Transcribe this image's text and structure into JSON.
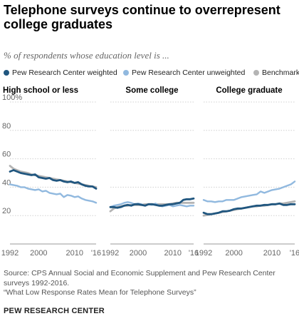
{
  "title": "Telephone surveys continue to overrepresent college graduates",
  "subtitle": "% of respondents whose education level is ...",
  "source_line1": "Source: CPS Annual Social and Economic Supplement and Pew Research Center surveys 1992-2016.",
  "source_line2": "“What Low Response Rates Mean for Telephone Surveys”",
  "credit": "PEW RESEARCH CENTER",
  "colors": {
    "weighted": "#20567f",
    "unweighted": "#91b9df",
    "benchmark": "#b4b4b4",
    "grid": "#d0d0d0",
    "tick_text": "#666666"
  },
  "chart_data": {
    "type": "line",
    "ylim": [
      0,
      100
    ],
    "yticks": [
      "20",
      "40",
      "60",
      "80",
      "100%"
    ],
    "xticks": [
      "1992",
      "2000",
      "2010",
      "'16"
    ],
    "xlim": [
      1992,
      2016
    ],
    "grid": "horizontal",
    "legend": "top",
    "series_labels": {
      "weighted": "Pew Research Center weighted",
      "unweighted": "Pew Research Center unweighted",
      "benchmark": "Benchmark"
    },
    "panels": [
      {
        "name": "High school or less",
        "series": {
          "benchmark": [
            [
              1992,
              55
            ],
            [
              1993,
              53
            ],
            [
              1994,
              52
            ],
            [
              1995,
              51
            ],
            [
              1996,
              50.5
            ],
            [
              1997,
              50
            ],
            [
              1998,
              49
            ],
            [
              1999,
              48.5
            ],
            [
              2000,
              48
            ],
            [
              2001,
              47.5
            ],
            [
              2002,
              47
            ],
            [
              2003,
              46.5
            ],
            [
              2004,
              46
            ],
            [
              2005,
              45.5
            ],
            [
              2006,
              45
            ],
            [
              2007,
              44.5
            ],
            [
              2008,
              44
            ],
            [
              2009,
              43.5
            ],
            [
              2010,
              43
            ],
            [
              2011,
              42.5
            ],
            [
              2012,
              42
            ],
            [
              2013,
              41.5
            ],
            [
              2014,
              41
            ],
            [
              2015,
              40.5
            ],
            [
              2016,
              40
            ]
          ],
          "weighted": [
            [
              1992,
              51
            ],
            [
              1993,
              52
            ],
            [
              1994,
              51
            ],
            [
              1995,
              50
            ],
            [
              1996,
              49.5
            ],
            [
              1997,
              49
            ],
            [
              1998,
              48.5
            ],
            [
              1999,
              49
            ],
            [
              2000,
              47
            ],
            [
              2001,
              46.5
            ],
            [
              2002,
              46
            ],
            [
              2003,
              46.5
            ],
            [
              2004,
              45
            ],
            [
              2005,
              44.5
            ],
            [
              2006,
              45
            ],
            [
              2007,
              44
            ],
            [
              2008,
              43.5
            ],
            [
              2009,
              44
            ],
            [
              2010,
              43
            ],
            [
              2011,
              43.5
            ],
            [
              2012,
              42
            ],
            [
              2013,
              41
            ],
            [
              2014,
              40.5
            ],
            [
              2015,
              40.5
            ],
            [
              2016,
              39
            ]
          ],
          "unweighted": [
            [
              1992,
              42
            ],
            [
              1993,
              41.5
            ],
            [
              1994,
              41
            ],
            [
              1995,
              40
            ],
            [
              1996,
              40
            ],
            [
              1997,
              39
            ],
            [
              1998,
              38.5
            ],
            [
              1999,
              38
            ],
            [
              2000,
              38.5
            ],
            [
              2001,
              37
            ],
            [
              2002,
              37.5
            ],
            [
              2003,
              36
            ],
            [
              2004,
              35.5
            ],
            [
              2005,
              35
            ],
            [
              2006,
              35.5
            ],
            [
              2007,
              33
            ],
            [
              2008,
              34.5
            ],
            [
              2009,
              34
            ],
            [
              2010,
              33
            ],
            [
              2011,
              33.5
            ],
            [
              2012,
              32
            ],
            [
              2013,
              31
            ],
            [
              2014,
              30.5
            ],
            [
              2015,
              30
            ],
            [
              2016,
              29
            ]
          ]
        }
      },
      {
        "name": "Some college",
        "series": {
          "benchmark": [
            [
              1992,
              23
            ],
            [
              1993,
              25
            ],
            [
              1994,
              26
            ],
            [
              1995,
              26.5
            ],
            [
              1996,
              27
            ],
            [
              1997,
              27
            ],
            [
              1998,
              27.5
            ],
            [
              1999,
              27.5
            ],
            [
              2000,
              27.5
            ],
            [
              2001,
              27.5
            ],
            [
              2002,
              28
            ],
            [
              2003,
              28
            ],
            [
              2004,
              28
            ],
            [
              2005,
              28
            ],
            [
              2006,
              28
            ],
            [
              2007,
              28
            ],
            [
              2008,
              28
            ],
            [
              2009,
              28
            ],
            [
              2010,
              28.5
            ],
            [
              2011,
              29
            ],
            [
              2012,
              29
            ],
            [
              2013,
              29
            ],
            [
              2014,
              29
            ],
            [
              2015,
              29
            ],
            [
              2016,
              29
            ]
          ],
          "weighted": [
            [
              1992,
              26
            ],
            [
              1993,
              26
            ],
            [
              1994,
              25.5
            ],
            [
              1995,
              26
            ],
            [
              1996,
              27
            ],
            [
              1997,
              27.5
            ],
            [
              1998,
              27
            ],
            [
              1999,
              28
            ],
            [
              2000,
              28
            ],
            [
              2001,
              27.5
            ],
            [
              2002,
              27
            ],
            [
              2003,
              28
            ],
            [
              2004,
              28
            ],
            [
              2005,
              27.5
            ],
            [
              2006,
              27
            ],
            [
              2007,
              27
            ],
            [
              2008,
              27.5
            ],
            [
              2009,
              28
            ],
            [
              2010,
              28
            ],
            [
              2011,
              28.5
            ],
            [
              2012,
              29
            ],
            [
              2013,
              31
            ],
            [
              2014,
              31.5
            ],
            [
              2015,
              31.5
            ],
            [
              2016,
              32
            ]
          ],
          "unweighted": [
            [
              1992,
              26
            ],
            [
              1993,
              27
            ],
            [
              1994,
              27.5
            ],
            [
              1995,
              28
            ],
            [
              1996,
              29
            ],
            [
              1997,
              29.5
            ],
            [
              1998,
              29
            ],
            [
              1999,
              28
            ],
            [
              2000,
              28.5
            ],
            [
              2001,
              28
            ],
            [
              2002,
              27
            ],
            [
              2003,
              28
            ],
            [
              2004,
              27.5
            ],
            [
              2005,
              28.5
            ],
            [
              2006,
              27
            ],
            [
              2007,
              26.5
            ],
            [
              2008,
              27
            ],
            [
              2009,
              27.5
            ],
            [
              2010,
              26.5
            ],
            [
              2011,
              27
            ],
            [
              2012,
              27.5
            ],
            [
              2013,
              27
            ],
            [
              2014,
              26.5
            ],
            [
              2015,
              27
            ],
            [
              2016,
              27
            ]
          ]
        }
      },
      {
        "name": "College graduate",
        "series": {
          "benchmark": [
            [
              1992,
              20
            ],
            [
              1993,
              20.5
            ],
            [
              1994,
              21
            ],
            [
              1995,
              21.5
            ],
            [
              1996,
              22
            ],
            [
              1997,
              22.5
            ],
            [
              1998,
              23
            ],
            [
              1999,
              23.5
            ],
            [
              2000,
              24
            ],
            [
              2001,
              24.5
            ],
            [
              2002,
              25
            ],
            [
              2003,
              25.5
            ],
            [
              2004,
              26
            ],
            [
              2005,
              26.5
            ],
            [
              2006,
              26.5
            ],
            [
              2007,
              27
            ],
            [
              2008,
              27
            ],
            [
              2009,
              27.5
            ],
            [
              2010,
              28
            ],
            [
              2011,
              28
            ],
            [
              2012,
              28.5
            ],
            [
              2013,
              28.5
            ],
            [
              2014,
              29
            ],
            [
              2015,
              29.5
            ],
            [
              2016,
              30
            ]
          ],
          "weighted": [
            [
              1992,
              22
            ],
            [
              1993,
              21
            ],
            [
              1994,
              21
            ],
            [
              1995,
              21.5
            ],
            [
              1996,
              22
            ],
            [
              1997,
              23
            ],
            [
              1998,
              23
            ],
            [
              1999,
              23.5
            ],
            [
              2000,
              24.5
            ],
            [
              2001,
              25
            ],
            [
              2002,
              25
            ],
            [
              2003,
              25.5
            ],
            [
              2004,
              26
            ],
            [
              2005,
              26.5
            ],
            [
              2006,
              27
            ],
            [
              2007,
              27
            ],
            [
              2008,
              27.5
            ],
            [
              2009,
              27.5
            ],
            [
              2010,
              28
            ],
            [
              2011,
              28
            ],
            [
              2012,
              28.5
            ],
            [
              2013,
              27.5
            ],
            [
              2014,
              27.5
            ],
            [
              2015,
              28
            ],
            [
              2016,
              28
            ]
          ],
          "unweighted": [
            [
              1992,
              31
            ],
            [
              1993,
              30
            ],
            [
              1994,
              30
            ],
            [
              1995,
              29.5
            ],
            [
              1996,
              30
            ],
            [
              1997,
              30
            ],
            [
              1998,
              31
            ],
            [
              1999,
              31
            ],
            [
              2000,
              31
            ],
            [
              2001,
              32
            ],
            [
              2002,
              33
            ],
            [
              2003,
              33.5
            ],
            [
              2004,
              34
            ],
            [
              2005,
              34.5
            ],
            [
              2006,
              35
            ],
            [
              2007,
              37
            ],
            [
              2008,
              36
            ],
            [
              2009,
              37
            ],
            [
              2010,
              38
            ],
            [
              2011,
              38.5
            ],
            [
              2012,
              39
            ],
            [
              2013,
              40
            ],
            [
              2014,
              41
            ],
            [
              2015,
              42
            ],
            [
              2016,
              44
            ]
          ]
        }
      }
    ]
  }
}
